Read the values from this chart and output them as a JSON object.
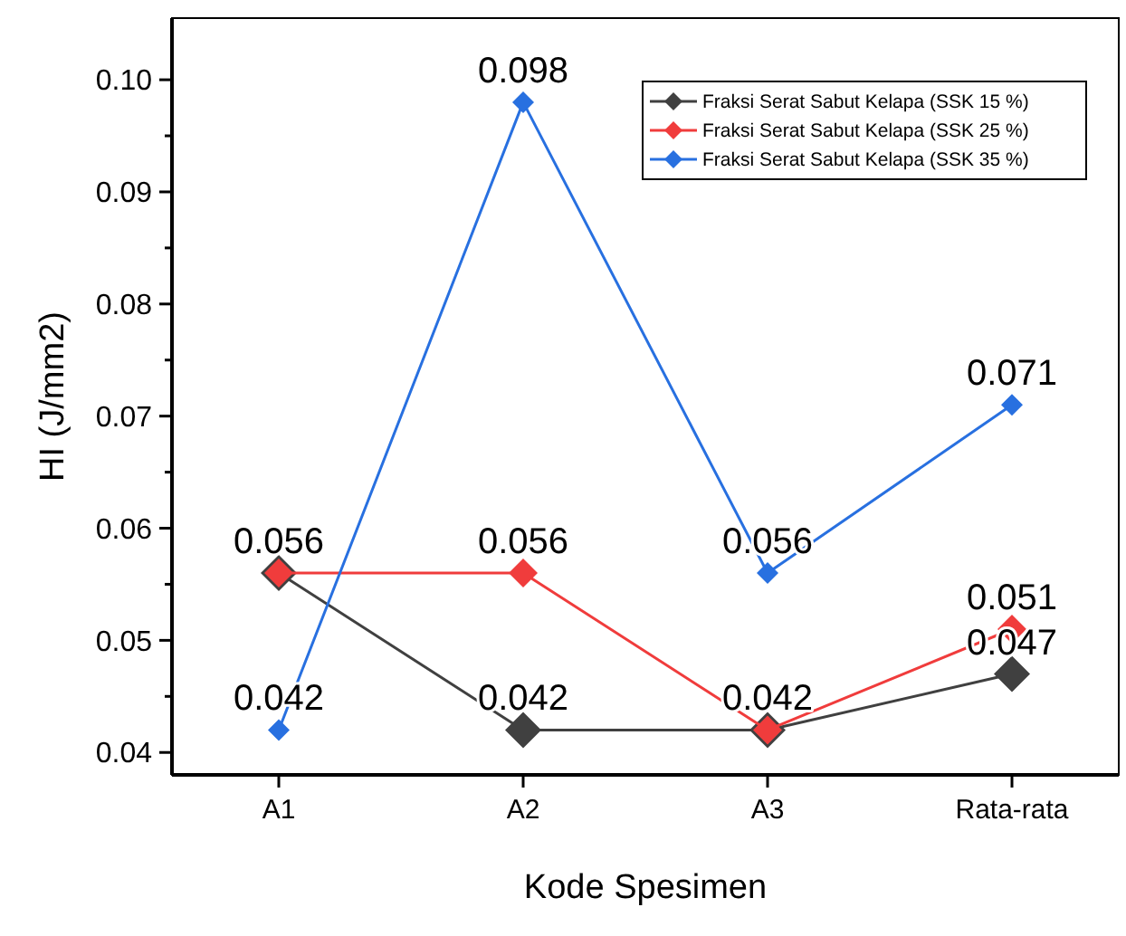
{
  "chart_data": {
    "type": "line",
    "xlabel": "Kode Spesimen",
    "ylabel": "HI (J/mm2)",
    "categories": [
      "A1",
      "A2",
      "A3",
      "Rata-rata"
    ],
    "series": [
      {
        "name": "Fraksi Serat Sabut Kelapa (SSK 15 %)",
        "color": "#404040",
        "values": [
          0.056,
          0.042,
          0.042,
          0.047
        ],
        "value_labels": [
          null,
          "0.042",
          null,
          "0.047"
        ]
      },
      {
        "name": "Fraksi Serat Sabut Kelapa (SSK 25 %)",
        "color": "#f03c3c",
        "values": [
          0.056,
          0.056,
          0.042,
          0.051
        ],
        "value_labels": [
          "0.056",
          "0.056",
          "0.042",
          "0.051"
        ]
      },
      {
        "name": "Fraksi Serat Sabut Kelapa (SSK 35 %)",
        "color": "#2870e0",
        "values": [
          0.042,
          0.098,
          0.056,
          0.071
        ],
        "value_labels": [
          "0.042",
          "0.098",
          "0.056",
          "0.071"
        ]
      }
    ],
    "ylim": [
      0.038,
      0.1055
    ],
    "yticks": [
      {
        "value": 0.04,
        "label": "0.04"
      },
      {
        "value": 0.045,
        "label": null
      },
      {
        "value": 0.05,
        "label": "0.05"
      },
      {
        "value": 0.055,
        "label": null
      },
      {
        "value": 0.06,
        "label": "0.06"
      },
      {
        "value": 0.065,
        "label": null
      },
      {
        "value": 0.07,
        "label": "0.07"
      },
      {
        "value": 0.075,
        "label": null
      },
      {
        "value": 0.08,
        "label": "0.08"
      },
      {
        "value": 0.085,
        "label": null
      },
      {
        "value": 0.09,
        "label": "0.09"
      },
      {
        "value": 0.095,
        "label": null
      },
      {
        "value": 0.1,
        "label": "0.10"
      }
    ],
    "marker": "diamond",
    "legend": "top right",
    "grid": false
  }
}
